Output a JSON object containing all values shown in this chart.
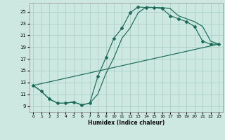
{
  "xlabel": "Humidex (Indice chaleur)",
  "bg_color": "#cce8e0",
  "line_color": "#1a6b5a",
  "grid_color": "#aacfc7",
  "ylim": [
    8.0,
    26.5
  ],
  "xlim": [
    -0.5,
    23.5
  ],
  "yticks": [
    9,
    11,
    13,
    15,
    17,
    19,
    21,
    23,
    25
  ],
  "xticks": [
    0,
    1,
    2,
    3,
    4,
    5,
    6,
    7,
    8,
    9,
    10,
    11,
    12,
    13,
    14,
    15,
    16,
    17,
    18,
    19,
    20,
    21,
    22,
    23
  ],
  "line1_x": [
    0,
    1,
    2,
    3,
    4,
    5,
    6,
    7,
    8,
    9,
    10,
    11,
    12,
    13,
    14,
    15,
    16,
    17,
    18,
    19,
    20,
    21,
    22,
    23
  ],
  "line1_y": [
    12.5,
    11.5,
    10.2,
    9.5,
    9.5,
    9.7,
    9.2,
    9.5,
    14.0,
    17.2,
    20.5,
    22.2,
    24.8,
    25.8,
    25.7,
    25.7,
    25.5,
    24.3,
    23.8,
    23.3,
    22.5,
    20.0,
    19.5,
    19.5
  ],
  "line2_x": [
    0,
    1,
    2,
    3,
    4,
    5,
    6,
    7,
    8,
    9,
    10,
    11,
    12,
    13,
    14,
    15,
    16,
    17,
    18,
    19,
    20,
    21,
    22,
    23
  ],
  "line2_y": [
    12.5,
    11.5,
    10.2,
    9.5,
    9.5,
    9.7,
    9.2,
    9.5,
    11.0,
    14.5,
    17.2,
    20.5,
    22.2,
    24.8,
    25.8,
    25.7,
    25.7,
    25.5,
    24.3,
    23.8,
    23.3,
    22.5,
    20.0,
    19.5
  ],
  "line3_x": [
    0,
    23
  ],
  "line3_y": [
    12.5,
    19.5
  ]
}
